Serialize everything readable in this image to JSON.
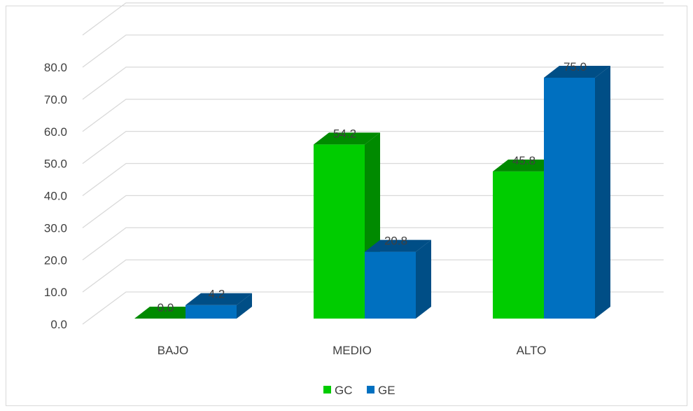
{
  "chart_data": {
    "type": "bar",
    "categories": [
      "BAJO",
      "MEDIO",
      "ALTO"
    ],
    "series": [
      {
        "name": "GC",
        "values": [
          0.0,
          54.2,
          45.8
        ],
        "color": "#00cc00",
        "side_color": "#008a00"
      },
      {
        "name": "GE",
        "values": [
          4.2,
          20.8,
          75.0
        ],
        "color": "#0070c0",
        "side_color": "#004e86"
      }
    ],
    "data_labels": [
      [
        "0.0",
        "54.2",
        "45.8"
      ],
      [
        "4.2",
        "20.8",
        "75.0"
      ]
    ],
    "ylim": [
      0,
      80
    ],
    "yticks": [
      "0.0",
      "10.0",
      "20.0",
      "30.0",
      "40.0",
      "50.0",
      "60.0",
      "70.0",
      "80.0"
    ],
    "grid": true,
    "legend_position": "bottom",
    "three_d": true
  }
}
